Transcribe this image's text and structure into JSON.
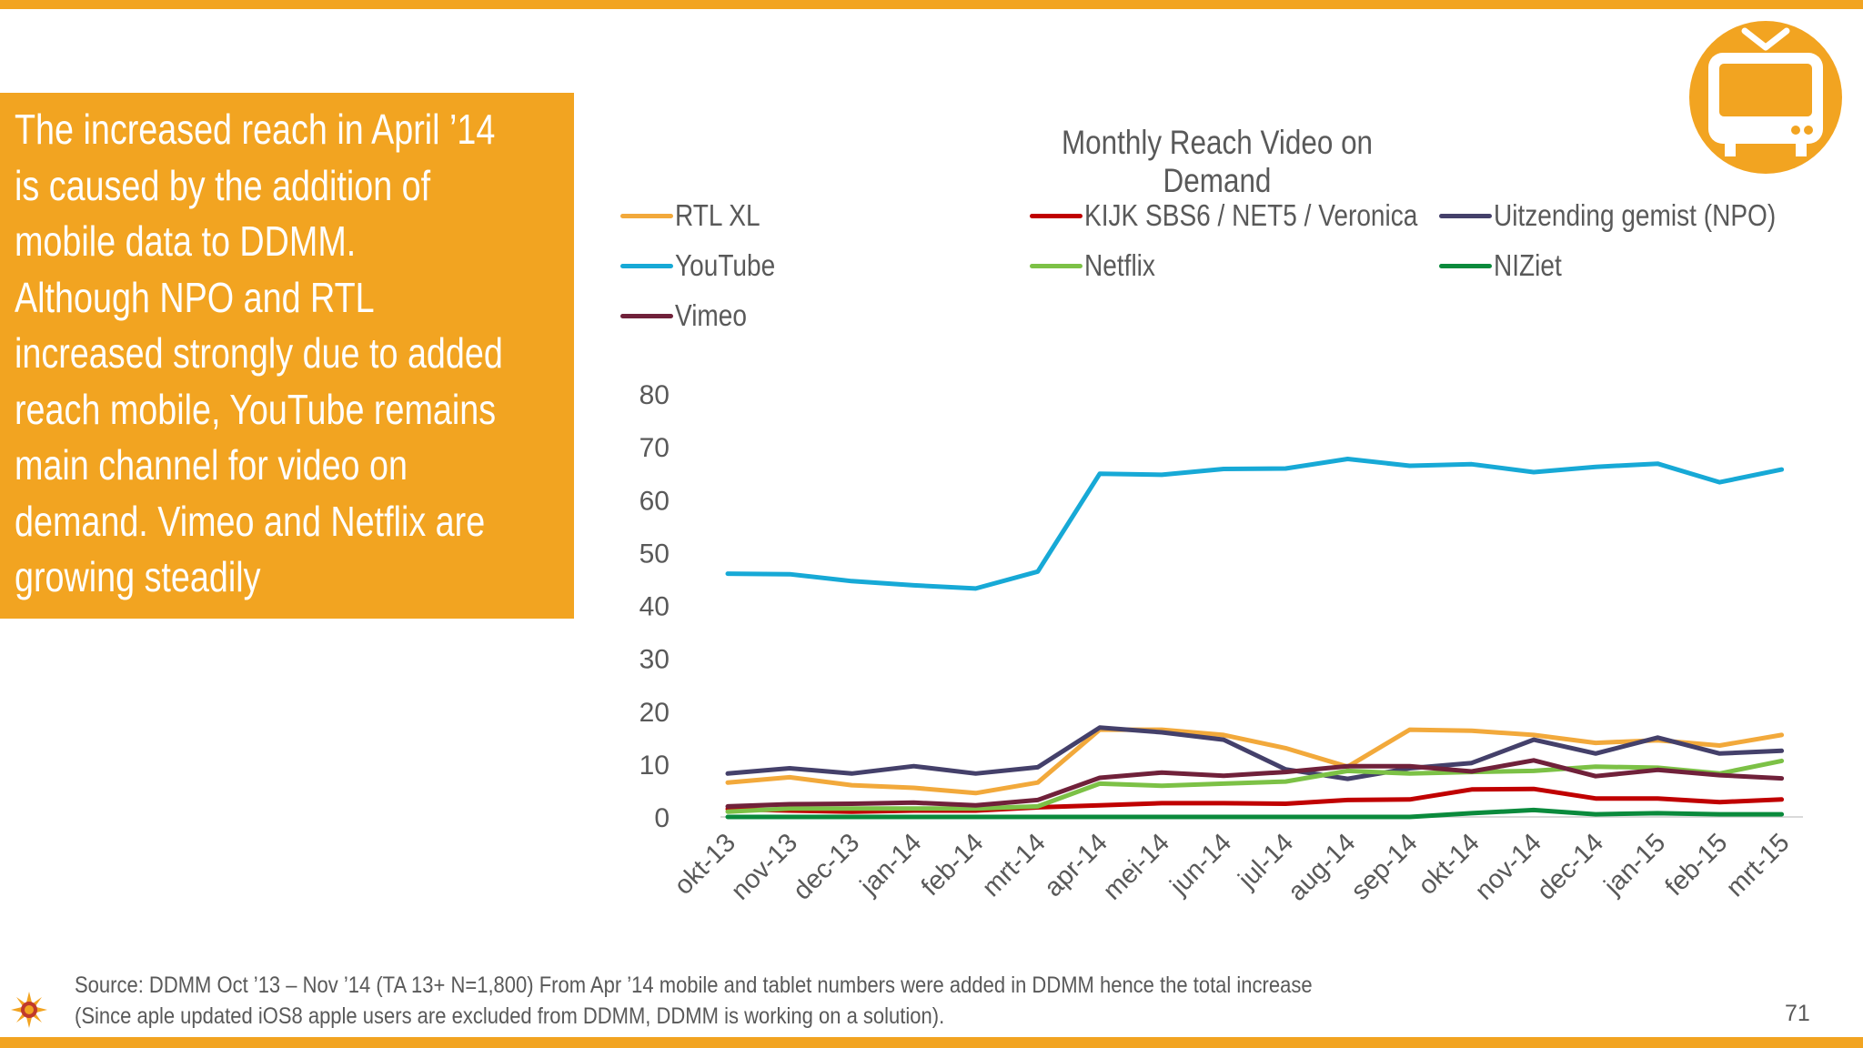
{
  "callout": {
    "lines": [
      "The increased reach in April ’14",
      "is caused by the addition of",
      "mobile data to DDMM.",
      "Although NPO and RTL",
      "increased strongly due to added",
      "reach mobile, YouTube remains",
      "main channel for video on",
      "demand. Vimeo and Netflix are",
      "growing steadily"
    ]
  },
  "colors": {
    "accent": "#f2a421",
    "text_gray": "#595959",
    "rtl_xl": "#f2a93b",
    "kijk": "#c00000",
    "npo": "#44406a",
    "youtube": "#17a9d6",
    "netflix": "#7cc146",
    "niziet": "#0a8a3c",
    "vimeo": "#70213a"
  },
  "icons": {
    "tv": "tv-icon",
    "logo": "sun-logo-icon"
  },
  "chart_data": {
    "type": "line",
    "title": "Monthly Reach Video on Demand",
    "xlabel": "",
    "ylabel": "",
    "ylim": [
      0,
      80
    ],
    "yticks": [
      "0",
      "10",
      "20",
      "30",
      "40",
      "50",
      "60",
      "70",
      "80"
    ],
    "grid": false,
    "legend_position": "top",
    "categories": [
      "okt-13",
      "nov-13",
      "dec-13",
      "jan-14",
      "feb-14",
      "mrt-14",
      "apr-14",
      "mei-14",
      "jun-14",
      "jul-14",
      "aug-14",
      "sep-14",
      "okt-14",
      "nov-14",
      "dec-14",
      "jan-15",
      "feb-15",
      "mrt-15"
    ],
    "series": [
      {
        "name": "RTL XL",
        "color": "#f2a93b",
        "values": [
          6.5,
          7.5,
          6,
          5.5,
          4.5,
          6.5,
          16.5,
          16.5,
          15.5,
          13,
          9.5,
          16.5,
          16.3,
          15.5,
          14,
          14.5,
          13.5,
          15.5
        ]
      },
      {
        "name": "KIJK SBS6 / NET5 / Veronica",
        "color": "#c00000",
        "values": [
          1.5,
          1.2,
          1,
          1.2,
          1.2,
          1.8,
          2.2,
          2.6,
          2.6,
          2.5,
          3.2,
          3.3,
          5.2,
          5.3,
          3.5,
          3.5,
          2.8,
          3.3
        ]
      },
      {
        "name": "Uitzending gemist (NPO)",
        "color": "#44406a",
        "values": [
          8.2,
          9.2,
          8.2,
          9.6,
          8.2,
          9.4,
          16.9,
          16,
          14.6,
          9,
          7.2,
          9.2,
          10.2,
          14.6,
          12,
          15,
          12,
          12.5
        ]
      },
      {
        "name": "YouTube",
        "color": "#17a9d6",
        "values": [
          46,
          45.9,
          44.6,
          43.8,
          43.2,
          46.4,
          64.9,
          64.7,
          65.8,
          65.9,
          67.7,
          66.4,
          66.7,
          65.2,
          66.2,
          66.8,
          63.3,
          65.7
        ]
      },
      {
        "name": "Netflix",
        "color": "#7cc146",
        "values": [
          1,
          1.6,
          1.6,
          1.6,
          1.6,
          2,
          6.3,
          5.9,
          6.3,
          6.7,
          8.7,
          8.2,
          8.5,
          8.7,
          9.5,
          9.3,
          8.2,
          10.6
        ]
      },
      {
        "name": "NIZiet",
        "color": "#0a8a3c",
        "values": [
          0,
          0,
          0,
          0,
          0,
          0,
          0,
          0,
          0,
          0,
          0,
          0,
          0.7,
          1.3,
          0.5,
          0.7,
          0.5,
          0.5
        ]
      },
      {
        "name": "Vimeo",
        "color": "#70213a",
        "values": [
          2,
          2.4,
          2.5,
          2.7,
          2.2,
          3.2,
          7.4,
          8.4,
          7.8,
          8.5,
          9.6,
          9.6,
          8.6,
          10.7,
          7.7,
          8.9,
          7.9,
          7.3
        ]
      }
    ]
  },
  "footer": {
    "source_line1": "Source: DDMM Oct ’13 – Nov ’14 (TA 13+ N=1,800) From Apr ’14 mobile and tablet numbers were added in DDMM hence the total increase",
    "source_line2": "(Since aple updated iOS8 apple users are excluded from DDMM, DDMM is working on a solution).",
    "page_number": "71"
  }
}
